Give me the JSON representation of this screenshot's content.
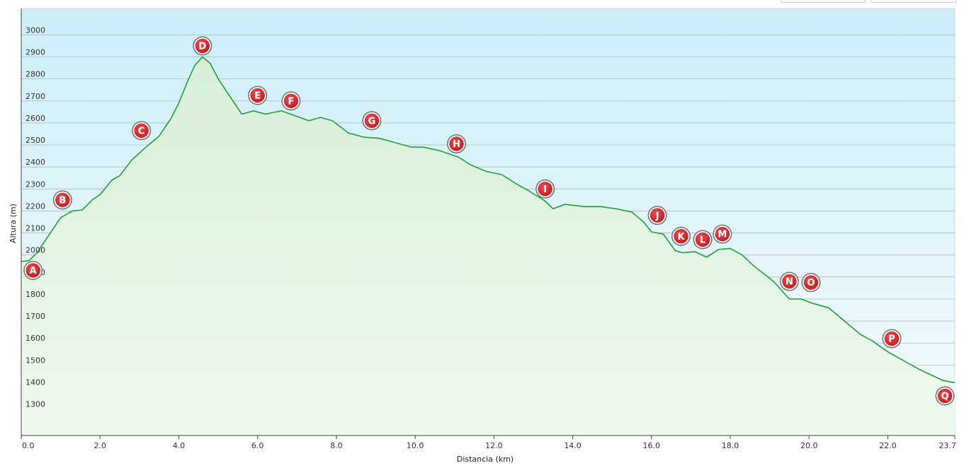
{
  "chart_data": {
    "type": "area",
    "xlabel": "Distancia  (km)",
    "ylabel": "Altura (m)",
    "xlim": [
      0,
      23.7
    ],
    "ylim": [
      1180,
      3120
    ],
    "x_ticks": [
      "0.0",
      "2.0",
      "4.0",
      "6.0",
      "8.0",
      "10.0",
      "12.0",
      "14.0",
      "16.0",
      "18.0",
      "20.0",
      "22.0",
      "23.7"
    ],
    "x_tick_values": [
      0,
      2,
      4,
      6,
      8,
      10,
      12,
      14,
      16,
      18,
      20,
      22,
      23.7
    ],
    "y_ticks": [
      "1300",
      "1400",
      "1500",
      "1600",
      "1700",
      "1800",
      "1900",
      "2000",
      "2100",
      "2200",
      "2300",
      "2400",
      "2500",
      "2600",
      "2700",
      "2800",
      "2900",
      "3000"
    ],
    "y_tick_values": [
      1300,
      1400,
      1500,
      1600,
      1700,
      1800,
      1900,
      2000,
      2100,
      2200,
      2300,
      2400,
      2500,
      2600,
      2700,
      2800,
      2900,
      3000
    ],
    "series": [
      {
        "points": [
          [
            0,
            1970
          ],
          [
            0.2,
            1975
          ],
          [
            0.4,
            2010
          ],
          [
            0.7,
            2090
          ],
          [
            1.0,
            2170
          ],
          [
            1.3,
            2200
          ],
          [
            1.55,
            2205
          ],
          [
            1.8,
            2250
          ],
          [
            2.0,
            2275
          ],
          [
            2.3,
            2340
          ],
          [
            2.5,
            2360
          ],
          [
            2.8,
            2430
          ],
          [
            3.1,
            2480
          ],
          [
            3.3,
            2510
          ],
          [
            3.5,
            2540
          ],
          [
            3.8,
            2620
          ],
          [
            4.0,
            2690
          ],
          [
            4.2,
            2780
          ],
          [
            4.4,
            2860
          ],
          [
            4.6,
            2900
          ],
          [
            4.8,
            2870
          ],
          [
            5.0,
            2800
          ],
          [
            5.3,
            2720
          ],
          [
            5.6,
            2640
          ],
          [
            5.9,
            2655
          ],
          [
            6.2,
            2640
          ],
          [
            6.6,
            2655
          ],
          [
            7.0,
            2630
          ],
          [
            7.3,
            2610
          ],
          [
            7.6,
            2625
          ],
          [
            7.9,
            2610
          ],
          [
            8.3,
            2555
          ],
          [
            8.7,
            2535
          ],
          [
            9.1,
            2530
          ],
          [
            9.5,
            2510
          ],
          [
            9.9,
            2490
          ],
          [
            10.2,
            2490
          ],
          [
            10.6,
            2475
          ],
          [
            11.1,
            2445
          ],
          [
            11.4,
            2410
          ],
          [
            11.8,
            2380
          ],
          [
            12.2,
            2365
          ],
          [
            12.6,
            2320
          ],
          [
            12.9,
            2290
          ],
          [
            13.3,
            2245
          ],
          [
            13.5,
            2210
          ],
          [
            13.8,
            2230
          ],
          [
            14.3,
            2220
          ],
          [
            14.7,
            2220
          ],
          [
            15.1,
            2210
          ],
          [
            15.5,
            2195
          ],
          [
            15.8,
            2150
          ],
          [
            16.0,
            2105
          ],
          [
            16.3,
            2095
          ],
          [
            16.6,
            2020
          ],
          [
            16.8,
            2010
          ],
          [
            17.1,
            2015
          ],
          [
            17.4,
            1990
          ],
          [
            17.7,
            2025
          ],
          [
            18.0,
            2030
          ],
          [
            18.3,
            2000
          ],
          [
            18.6,
            1950
          ],
          [
            19.1,
            1880
          ],
          [
            19.5,
            1800
          ],
          [
            19.8,
            1800
          ],
          [
            20.1,
            1780
          ],
          [
            20.5,
            1760
          ],
          [
            20.9,
            1700
          ],
          [
            21.3,
            1640
          ],
          [
            21.6,
            1610
          ],
          [
            22.0,
            1560
          ],
          [
            22.4,
            1520
          ],
          [
            22.8,
            1480
          ],
          [
            23.1,
            1455
          ],
          [
            23.4,
            1430
          ],
          [
            23.7,
            1420
          ]
        ]
      }
    ],
    "waypoints": [
      {
        "label": "A",
        "x": 0.3,
        "y": 1930
      },
      {
        "label": "B",
        "x": 1.05,
        "y": 2250
      },
      {
        "label": "C",
        "x": 3.05,
        "y": 2565
      },
      {
        "label": "D",
        "x": 4.6,
        "y": 2950
      },
      {
        "label": "E",
        "x": 6.0,
        "y": 2725
      },
      {
        "label": "F",
        "x": 6.85,
        "y": 2700
      },
      {
        "label": "G",
        "x": 8.9,
        "y": 2610
      },
      {
        "label": "H",
        "x": 11.05,
        "y": 2505
      },
      {
        "label": "I",
        "x": 13.3,
        "y": 2300
      },
      {
        "label": "J",
        "x": 16.15,
        "y": 2180
      },
      {
        "label": "K",
        "x": 16.75,
        "y": 2085
      },
      {
        "label": "L",
        "x": 17.3,
        "y": 2070
      },
      {
        "label": "M",
        "x": 17.8,
        "y": 2095
      },
      {
        "label": "N",
        "x": 19.5,
        "y": 1880
      },
      {
        "label": "O",
        "x": 20.05,
        "y": 1875
      },
      {
        "label": "P",
        "x": 22.1,
        "y": 1620
      },
      {
        "label": "Q",
        "x": 23.45,
        "y": 1360
      }
    ],
    "grid": true,
    "line_color": "#22a03c",
    "waypoint_color": "#d8262b"
  }
}
